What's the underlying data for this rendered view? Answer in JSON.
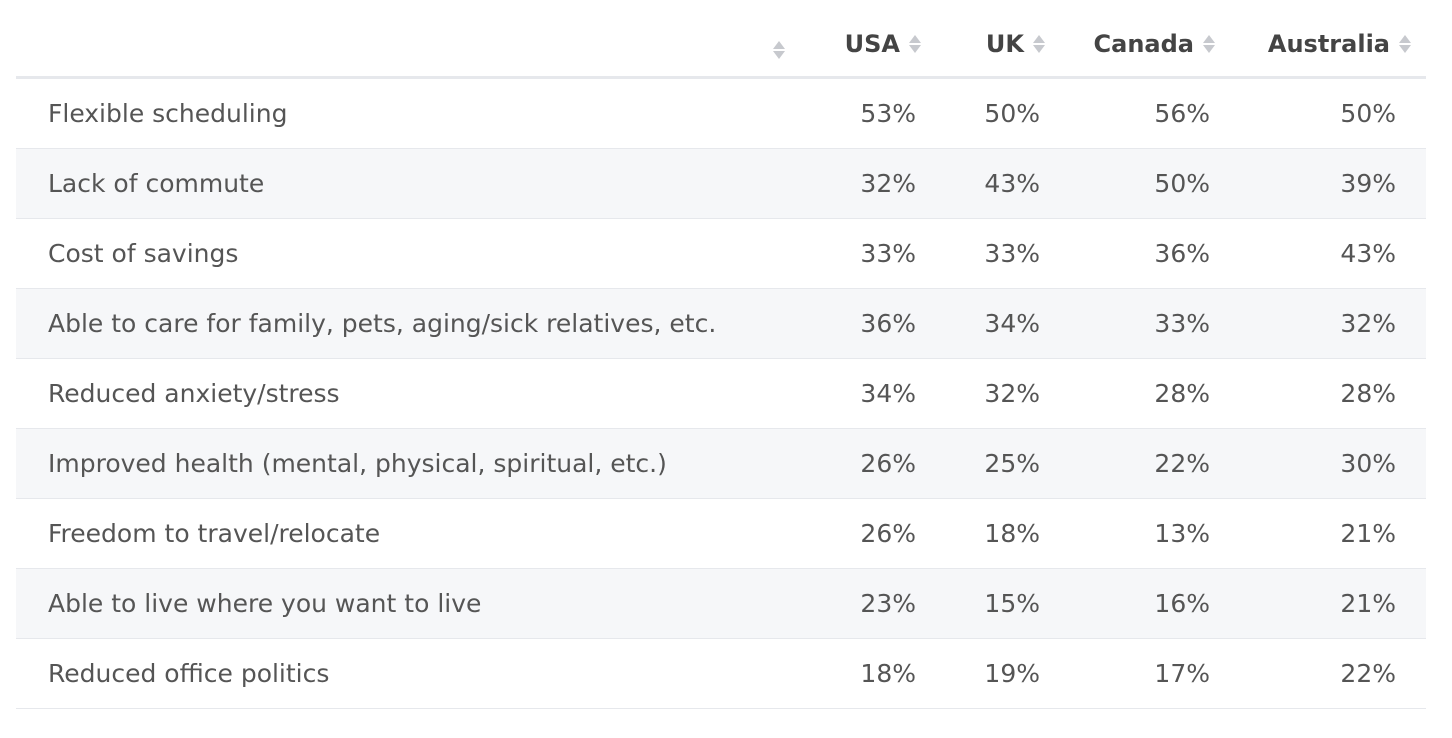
{
  "table": {
    "columns": [
      {
        "label": ""
      },
      {
        "label": "USA"
      },
      {
        "label": "UK"
      },
      {
        "label": "Canada"
      },
      {
        "label": "Australia"
      }
    ],
    "rows": [
      {
        "label": "Flexible scheduling",
        "usa": "53%",
        "uk": "50%",
        "canada": "56%",
        "australia": "50%"
      },
      {
        "label": "Lack of commute",
        "usa": "32%",
        "uk": "43%",
        "canada": "50%",
        "australia": "39%"
      },
      {
        "label": "Cost of savings",
        "usa": "33%",
        "uk": "33%",
        "canada": "36%",
        "australia": "43%"
      },
      {
        "label": "Able to care for family, pets, aging/sick relatives, etc.",
        "usa": "36%",
        "uk": "34%",
        "canada": "33%",
        "australia": "32%"
      },
      {
        "label": "Reduced anxiety/stress",
        "usa": "34%",
        "uk": "32%",
        "canada": "28%",
        "australia": "28%"
      },
      {
        "label": "Improved health (mental, physical, spiritual, etc.)",
        "usa": "26%",
        "uk": "25%",
        "canada": "22%",
        "australia": "30%"
      },
      {
        "label": "Freedom to travel/relocate",
        "usa": "26%",
        "uk": "18%",
        "canada": "13%",
        "australia": "21%"
      },
      {
        "label": "Able to live where you want to live",
        "usa": "23%",
        "uk": "15%",
        "canada": "16%",
        "australia": "21%"
      },
      {
        "label": "Reduced office politics",
        "usa": "18%",
        "uk": "19%",
        "canada": "17%",
        "australia": "22%"
      }
    ]
  },
  "icons": {
    "sort": "sort-icon"
  }
}
